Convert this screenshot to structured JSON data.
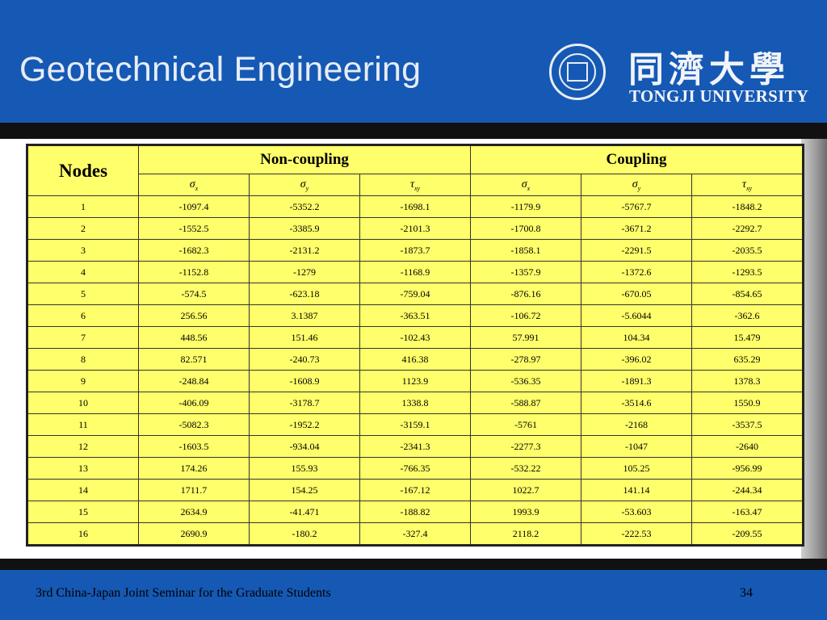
{
  "header": {
    "title": "Geotechnical Engineering",
    "chinese_name": "同濟大學",
    "university_name": "TONGJI UNIVERSITY"
  },
  "table": {
    "nodes_header": "Nodes",
    "group_non_coupling": "Non-coupling",
    "group_coupling": "Coupling",
    "subheaders": [
      {
        "sym": "σ",
        "sub": "x"
      },
      {
        "sym": "σ",
        "sub": "y"
      },
      {
        "sym": "τ",
        "sub": "xy"
      },
      {
        "sym": "σ",
        "sub": "x"
      },
      {
        "sym": "σ",
        "sub": "y"
      },
      {
        "sym": "τ",
        "sub": "xy"
      }
    ],
    "rows": [
      [
        "1",
        "-1097.4",
        "-5352.2",
        "-1698.1",
        "-1179.9",
        "-5767.7",
        "-1848.2"
      ],
      [
        "2",
        "-1552.5",
        "-3385.9",
        "-2101.3",
        "-1700.8",
        "-3671.2",
        "-2292.7"
      ],
      [
        "3",
        "-1682.3",
        "-2131.2",
        "-1873.7",
        "-1858.1",
        "-2291.5",
        "-2035.5"
      ],
      [
        "4",
        "-1152.8",
        "-1279",
        "-1168.9",
        "-1357.9",
        "-1372.6",
        "-1293.5"
      ],
      [
        "5",
        "-574.5",
        "-623.18",
        "-759.04",
        "-876.16",
        "-670.05",
        "-854.65"
      ],
      [
        "6",
        "256.56",
        "3.1387",
        "-363.51",
        "-106.72",
        "-5.6044",
        "-362.6"
      ],
      [
        "7",
        "448.56",
        "151.46",
        "-102.43",
        "57.991",
        "104.34",
        "15.479"
      ],
      [
        "8",
        "82.571",
        "-240.73",
        "416.38",
        "-278.97",
        "-396.02",
        "635.29"
      ],
      [
        "9",
        "-248.84",
        "-1608.9",
        "1123.9",
        "-536.35",
        "-1891.3",
        "1378.3"
      ],
      [
        "10",
        "-406.09",
        "-3178.7",
        "1338.8",
        "-588.87",
        "-3514.6",
        "1550.9"
      ],
      [
        "11",
        "-5082.3",
        "-1952.2",
        "-3159.1",
        "-5761",
        "-2168",
        "-3537.5"
      ],
      [
        "12",
        "-1603.5",
        "-934.04",
        "-2341.3",
        "-2277.3",
        "-1047",
        "-2640"
      ],
      [
        "13",
        "174.26",
        "155.93",
        "-766.35",
        "-532.22",
        "105.25",
        "-956.99"
      ],
      [
        "14",
        "1711.7",
        "154.25",
        "-167.12",
        "1022.7",
        "141.14",
        "-244.34"
      ],
      [
        "15",
        "2634.9",
        "-41.471",
        "-188.82",
        "1993.9",
        "-53.603",
        "-163.47"
      ],
      [
        "16",
        "2690.9",
        "-180.2",
        "-327.4",
        "2118.2",
        "-222.53",
        "-209.55"
      ]
    ]
  },
  "footer": {
    "text": "3rd China-Japan Joint Seminar for the Graduate Students",
    "page_number": "34"
  },
  "colors": {
    "slide_blue": "#1559b4",
    "table_yellow": "#ffff6b"
  }
}
